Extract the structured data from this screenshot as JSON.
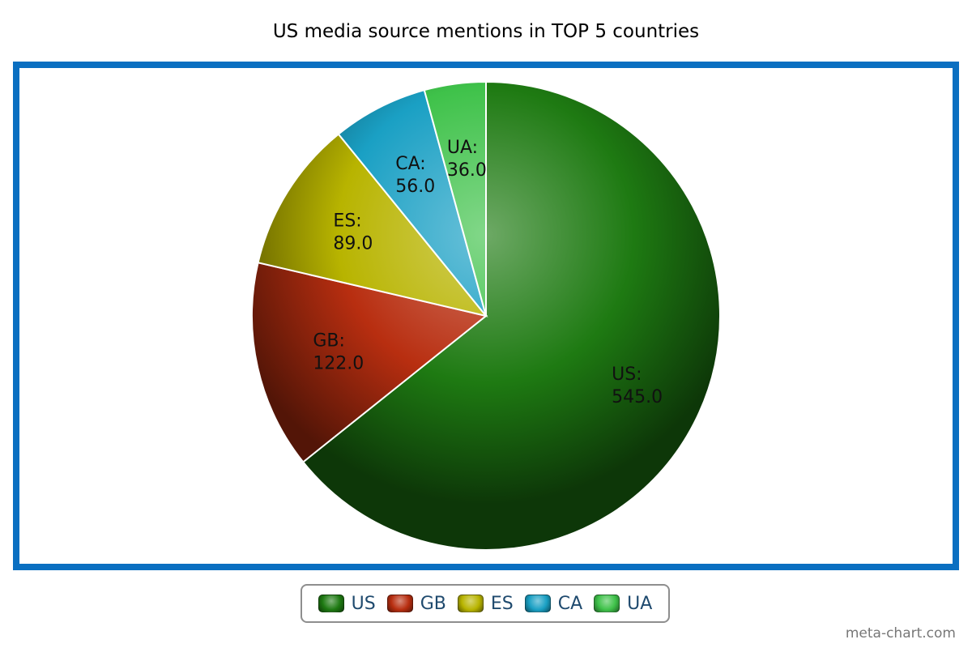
{
  "chart_data": {
    "type": "pie",
    "title": "US media source mentions in TOP 5 countries",
    "categories": [
      "US",
      "GB",
      "ES",
      "CA",
      "UA"
    ],
    "values": [
      545.0,
      122.0,
      89.0,
      56.0,
      36.0
    ],
    "value_labels": [
      "545.0",
      "122.0",
      "89.0",
      "56.0",
      "36.0"
    ],
    "colors": [
      "#1e7a12",
      "#b82e10",
      "#b8b400",
      "#1aa0c4",
      "#3fc24a"
    ],
    "legend_position": "bottom-center"
  },
  "credit": "meta-chart.com"
}
